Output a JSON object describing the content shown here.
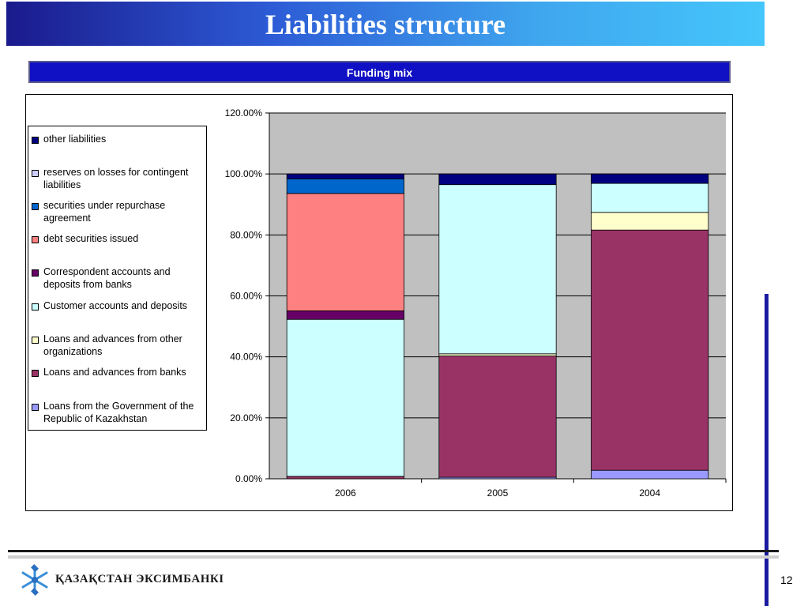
{
  "slide": {
    "title": "Liabilities structure",
    "subtitle": "Funding mix",
    "brand": "ҚАЗАҚСТАН ЭКСИМБАНКІ",
    "page_number": "12"
  },
  "chart_data": {
    "type": "bar",
    "stacked": true,
    "categories": [
      "2006",
      "2005",
      "2004"
    ],
    "yticks": [
      "0.00%",
      "20.00%",
      "40.00%",
      "60.00%",
      "80.00%",
      "100.00%",
      "120.00%"
    ],
    "ylim": [
      0,
      1.2
    ],
    "grid": true,
    "legend_position": "left",
    "plot_background": "#c0c0c0",
    "series": [
      {
        "name": "Loans from the Government of the Republic of Kazakhstan",
        "color": "#9999ff",
        "values": [
          0.0,
          0.005,
          0.028
        ]
      },
      {
        "name": "Loans and advances from banks",
        "color": "#993366",
        "values": [
          0.008,
          0.398,
          0.788
        ]
      },
      {
        "name": "Loans and advances from other organizations",
        "color": "#ffffcc",
        "values": [
          0.0,
          0.007,
          0.058
        ]
      },
      {
        "name": "Customer accounts and deposits",
        "color": "#ccffff",
        "values": [
          0.515,
          0.555,
          0.095
        ]
      },
      {
        "name": "Correspondent accounts and deposits from banks",
        "color": "#660066",
        "values": [
          0.028,
          0.0,
          0.0
        ]
      },
      {
        "name": "debt securities issued",
        "color": "#ff8080",
        "values": [
          0.385,
          0.0,
          0.0
        ]
      },
      {
        "name": "securities under repurchase agreement",
        "color": "#0066cc",
        "values": [
          0.048,
          0.0,
          0.0
        ]
      },
      {
        "name": "reserves on losses for contingent liabilities",
        "color": "#ccccff",
        "values": [
          0.0,
          0.0,
          0.0
        ]
      },
      {
        "name": "other liabilities",
        "color": "#000080",
        "values": [
          0.016,
          0.035,
          0.031
        ]
      }
    ],
    "legend_order": [
      "other liabilities",
      "reserves on losses for contingent liabilities",
      "securities under repurchase agreement",
      "debt securities issued",
      "Correspondent accounts and deposits from banks",
      "Customer accounts and deposits",
      "Loans and advances from other organizations",
      "Loans and advances from banks",
      "Loans from the Government of the Republic of Kazakhstan"
    ]
  }
}
